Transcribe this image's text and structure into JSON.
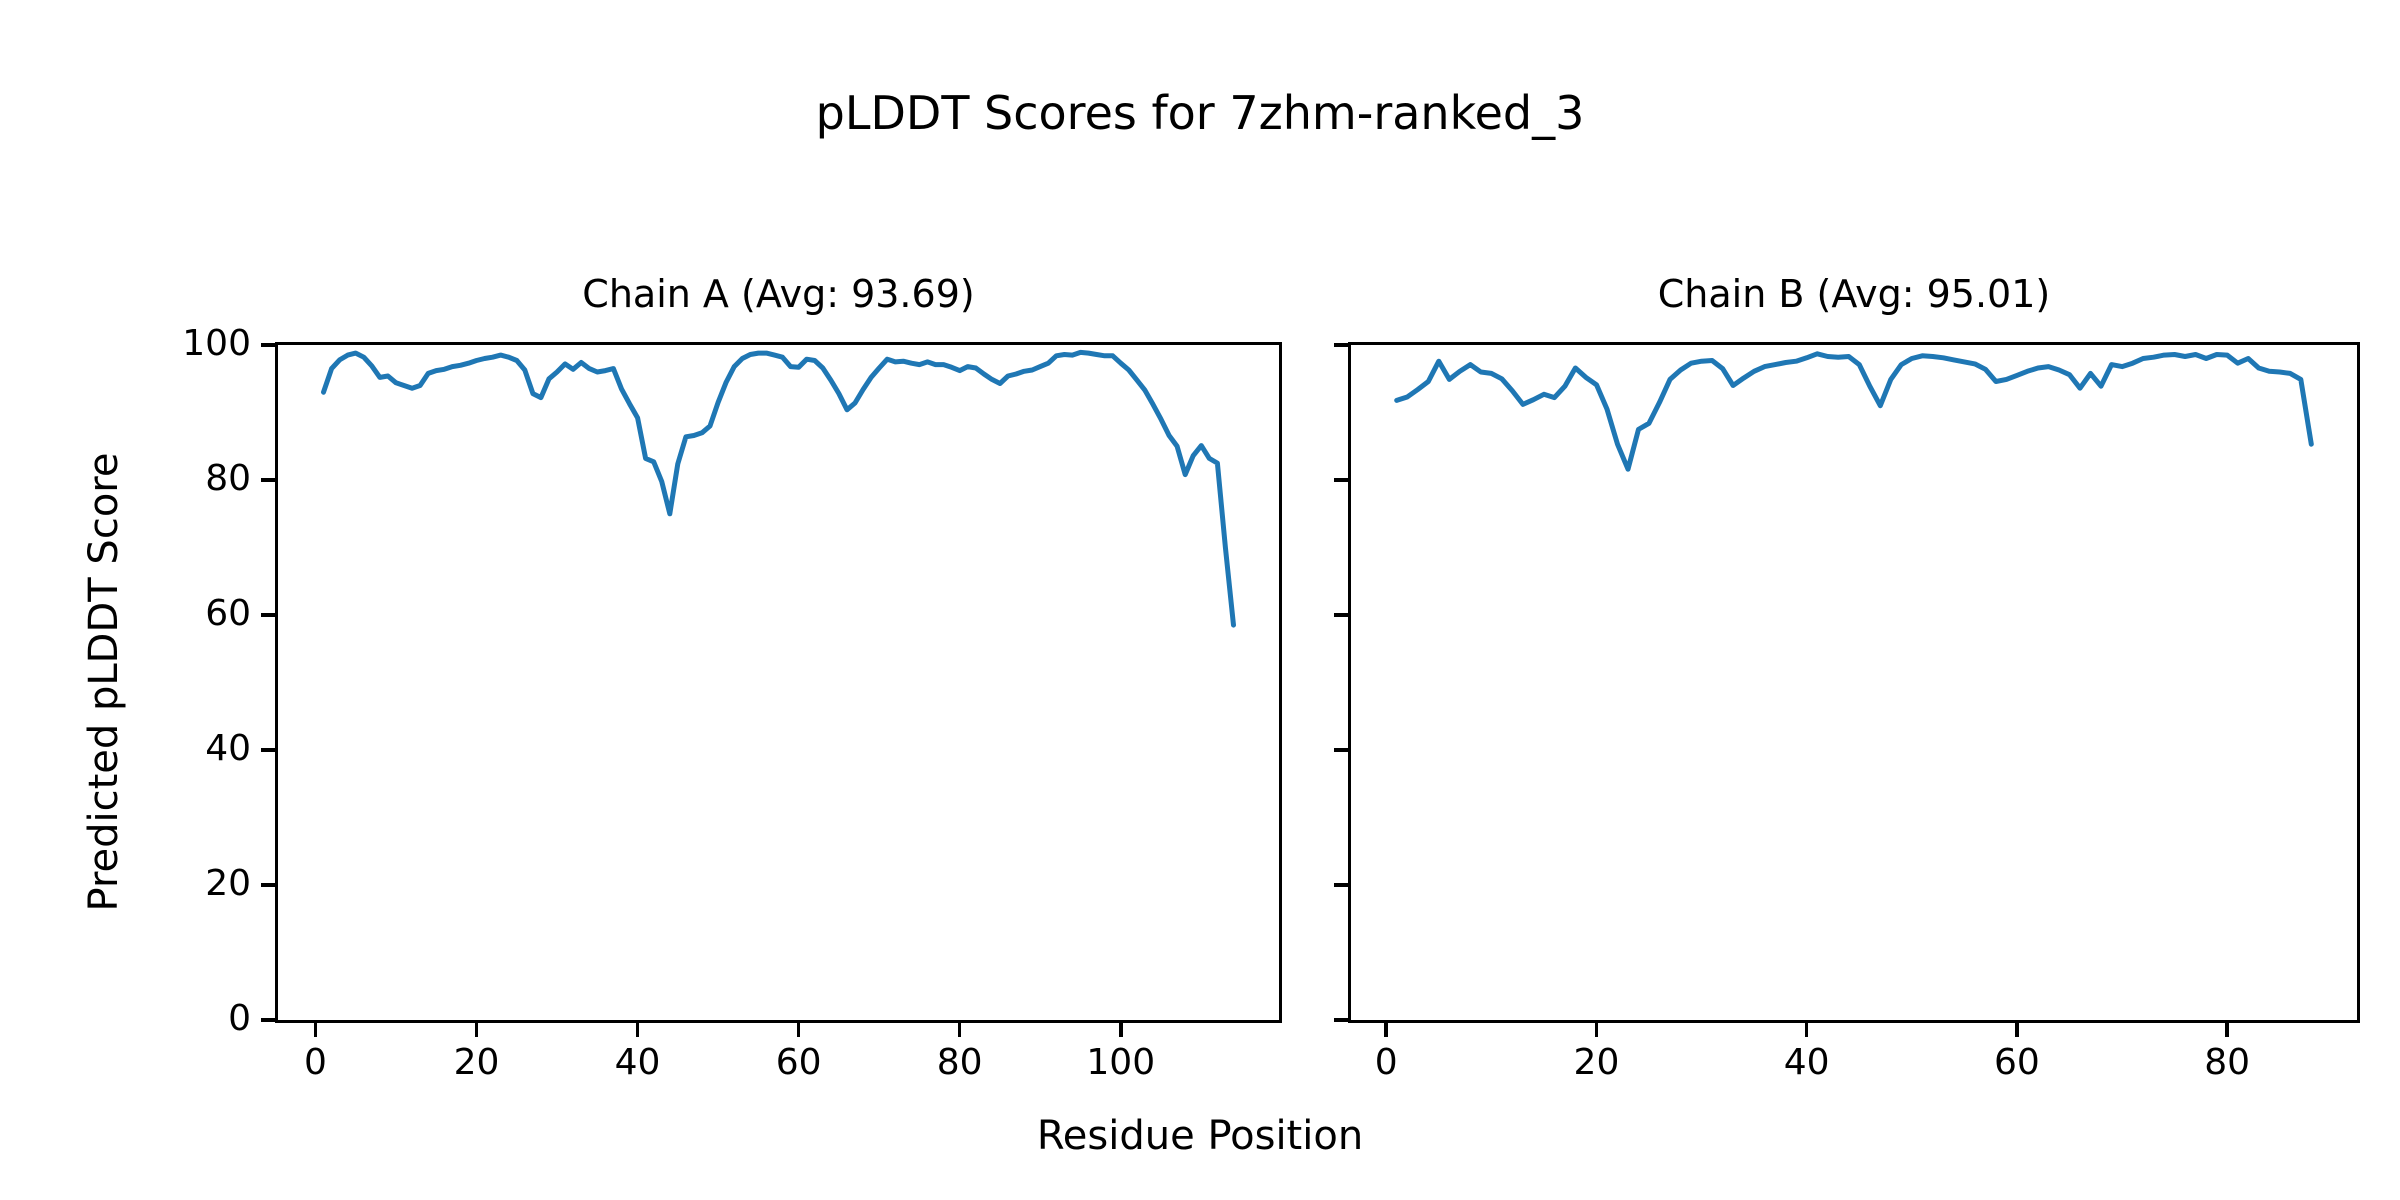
{
  "figure": {
    "suptitle": "pLDDT Scores for 7zhm-ranked_3",
    "xlabel": "Residue Position",
    "ylabel": "Predicted pLDDT Score",
    "line_color": "#1f77b4",
    "background": "#ffffff",
    "text_color": "#000000"
  },
  "chart_data": [
    {
      "type": "line",
      "title": "Chain A (Avg: 93.69)",
      "chain": "A",
      "avg": 93.69,
      "n_residues": 114,
      "x_start": 1,
      "xlim": [
        -4.65,
        119.65
      ],
      "ylim": [
        0,
        100
      ],
      "xticks": [
        0,
        20,
        40,
        60,
        80,
        100
      ],
      "yticks": [
        0,
        20,
        40,
        60,
        80,
        100
      ],
      "ytick_labels_visible": true,
      "grid": false,
      "values": [
        93.0,
        96.5,
        97.8,
        98.5,
        98.8,
        98.2,
        96.9,
        95.2,
        95.4,
        94.4,
        94.0,
        93.6,
        94.0,
        95.8,
        96.2,
        96.4,
        96.8,
        97.0,
        97.3,
        97.7,
        98.0,
        98.2,
        98.5,
        98.2,
        97.7,
        96.3,
        92.8,
        92.2,
        95.0,
        96.0,
        97.2,
        96.4,
        97.4,
        96.5,
        96.0,
        96.2,
        96.5,
        93.5,
        91.3,
        89.2,
        83.2,
        82.7,
        79.8,
        75.0,
        82.4,
        86.4,
        86.6,
        87.0,
        88.0,
        91.5,
        94.5,
        96.8,
        98.0,
        98.6,
        98.8,
        98.8,
        98.5,
        98.2,
        96.8,
        96.7,
        97.9,
        97.7,
        96.6,
        94.8,
        92.8,
        90.4,
        91.4,
        93.4,
        95.2,
        96.6,
        97.9,
        97.5,
        97.6,
        97.3,
        97.1,
        97.5,
        97.1,
        97.1,
        96.7,
        96.2,
        96.8,
        96.6,
        95.7,
        94.9,
        94.3,
        95.4,
        95.7,
        96.1,
        96.3,
        96.8,
        97.3,
        98.4,
        98.6,
        98.5,
        98.9,
        98.8,
        98.6,
        98.4,
        98.4,
        97.3,
        96.3,
        94.8,
        93.3,
        91.2,
        89.0,
        86.6,
        85.0,
        80.8,
        83.6,
        85.1,
        83.2,
        82.5,
        70.0,
        58.5
      ]
    },
    {
      "type": "line",
      "title": "Chain B (Avg: 95.01)",
      "chain": "B",
      "avg": 95.01,
      "n_residues": 88,
      "x_start": 1,
      "xlim": [
        -3.35,
        92.35
      ],
      "ylim": [
        0,
        100
      ],
      "xticks": [
        0,
        20,
        40,
        60,
        80
      ],
      "yticks": [
        0,
        20,
        40,
        60,
        80,
        100
      ],
      "ytick_labels_visible": false,
      "grid": false,
      "values": [
        91.8,
        92.3,
        93.4,
        94.6,
        97.6,
        94.9,
        96.1,
        97.1,
        96.0,
        95.8,
        95.0,
        93.2,
        91.2,
        91.9,
        92.7,
        92.2,
        93.9,
        96.6,
        95.2,
        94.1,
        90.5,
        85.3,
        81.6,
        87.5,
        88.4,
        91.5,
        94.9,
        96.3,
        97.3,
        97.6,
        97.7,
        96.5,
        94.0,
        95.1,
        96.1,
        96.8,
        97.1,
        97.4,
        97.6,
        98.1,
        98.7,
        98.3,
        98.2,
        98.3,
        97.1,
        93.9,
        91.0,
        94.9,
        97.1,
        98.0,
        98.4,
        98.3,
        98.1,
        97.8,
        97.5,
        97.2,
        96.4,
        94.6,
        94.9,
        95.5,
        96.1,
        96.6,
        96.8,
        96.3,
        95.6,
        93.6,
        95.8,
        93.9,
        97.1,
        96.8,
        97.3,
        98.0,
        98.2,
        98.5,
        98.6,
        98.3,
        98.6,
        98.0,
        98.6,
        98.5,
        97.3,
        98.0,
        96.6,
        96.1,
        96.0,
        95.8,
        94.9,
        85.3
      ]
    }
  ]
}
